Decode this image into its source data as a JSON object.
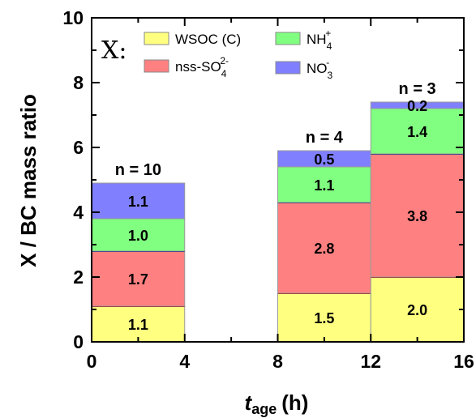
{
  "chart_data": {
    "type": "bar",
    "stacked": true,
    "xlabel": {
      "main": "t",
      "sub": "age",
      "unit": "(h)"
    },
    "ylabel": "X / BC  mass ratio",
    "xlim": [
      0,
      16
    ],
    "ylim": [
      0,
      10
    ],
    "xticks": [
      "0",
      "4",
      "8",
      "12",
      "16"
    ],
    "yticks": [
      "0",
      "2",
      "4",
      "6",
      "8",
      "10"
    ],
    "legend": {
      "placement": "top-left",
      "prefix": "X:",
      "entries": [
        {
          "key": "wsoc",
          "main": "WSOC (C)",
          "sup": "",
          "sub": ""
        },
        {
          "key": "nh4",
          "main": "NH",
          "sup": "+",
          "sub": "4"
        },
        {
          "key": "so4",
          "main": "nss-SO",
          "sup": "2-",
          "sub": "4"
        },
        {
          "key": "no3",
          "main": "NO",
          "sup": "-",
          "sub": "3"
        }
      ]
    },
    "colors": {
      "wsoc": "#ffff80",
      "so4": "#ff8080",
      "nh4": "#80ff80",
      "no3": "#8080ff",
      "wsoc_top_line": "#a00000",
      "so4_top_line": "#000080"
    },
    "series_order": [
      "wsoc",
      "so4",
      "nh4",
      "no3"
    ],
    "bars": [
      {
        "x0": 0,
        "x1": 4,
        "n_label": "n = 10",
        "values": {
          "wsoc": 1.1,
          "so4": 1.7,
          "nh4": 1.0,
          "no3": 1.1
        },
        "labels": {
          "wsoc": "1.1",
          "so4": "1.7",
          "nh4": "1.0",
          "no3": "1.1"
        }
      },
      {
        "x0": 8,
        "x1": 12,
        "n_label": "n = 4",
        "values": {
          "wsoc": 1.5,
          "so4": 2.8,
          "nh4": 1.1,
          "no3": 0.5
        },
        "labels": {
          "wsoc": "1.5",
          "so4": "2.8",
          "nh4": "1.1",
          "no3": "0.5"
        }
      },
      {
        "x0": 12,
        "x1": 16,
        "n_label": "n = 3",
        "values": {
          "wsoc": 2.0,
          "so4": 3.8,
          "nh4": 1.4,
          "no3": 0.2
        },
        "labels": {
          "wsoc": "2.0",
          "so4": "3.8",
          "nh4": "1.4",
          "no3": "0.2"
        }
      }
    ]
  }
}
